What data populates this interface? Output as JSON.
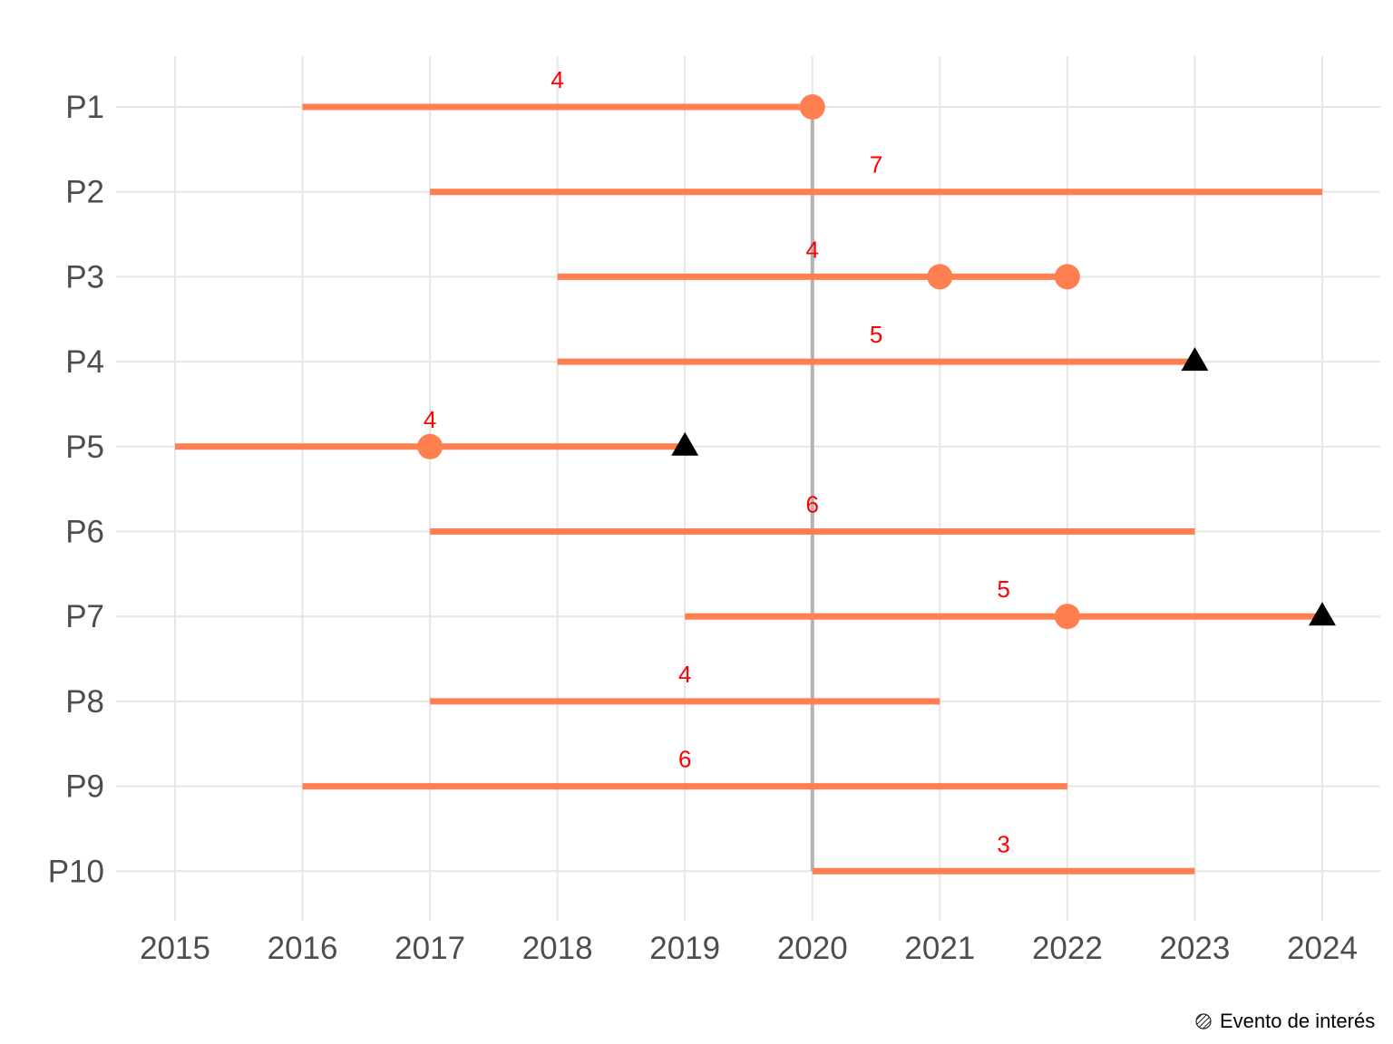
{
  "chart_data": {
    "type": "timeline",
    "title": "",
    "xlabel": "",
    "ylabel": "",
    "xlim": [
      2014.55,
      2024.45
    ],
    "x_ticks": [
      "2015",
      "2016",
      "2017",
      "2018",
      "2019",
      "2020",
      "2021",
      "2022",
      "2023",
      "2024"
    ],
    "categories": [
      "P1",
      "P2",
      "P3",
      "P4",
      "P5",
      "P6",
      "P7",
      "P8",
      "P9",
      "P10"
    ],
    "reference_line": {
      "x": 2020,
      "from": "P1",
      "to": "P10",
      "color": "#b3b3b3"
    },
    "segments": [
      {
        "id": "P1",
        "start": 2016,
        "end": 2020,
        "label": "4",
        "events": [
          2020
        ],
        "endpoints": []
      },
      {
        "id": "P2",
        "start": 2017,
        "end": 2024,
        "label": "7",
        "events": [],
        "endpoints": []
      },
      {
        "id": "P3",
        "start": 2018,
        "end": 2022,
        "label": "4",
        "events": [
          2021,
          2022
        ],
        "endpoints": []
      },
      {
        "id": "P4",
        "start": 2018,
        "end": 2023,
        "label": "5",
        "events": [],
        "endpoints": [
          2023
        ]
      },
      {
        "id": "P5",
        "start": 2015,
        "end": 2019,
        "label": "4",
        "events": [
          2017
        ],
        "endpoints": [
          2019
        ]
      },
      {
        "id": "P6",
        "start": 2017,
        "end": 2023,
        "label": "6",
        "events": [],
        "endpoints": []
      },
      {
        "id": "P7",
        "start": 2019,
        "end": 2024,
        "label": "5",
        "events": [
          2022
        ],
        "endpoints": [
          2024
        ]
      },
      {
        "id": "P8",
        "start": 2017,
        "end": 2021,
        "label": "4",
        "events": [],
        "endpoints": []
      },
      {
        "id": "P9",
        "start": 2016,
        "end": 2022,
        "label": "6",
        "events": [],
        "endpoints": []
      },
      {
        "id": "P10",
        "start": 2020,
        "end": 2023,
        "label": "3",
        "events": [],
        "endpoints": []
      }
    ],
    "colors": {
      "segment": "#ff7f50",
      "event": "#ff7f50",
      "endpoint": "#000000",
      "label": "#ff0000",
      "grid": "#e6e6e6"
    },
    "grid": true,
    "legend": {
      "label": "Evento de interés",
      "position": "bottom-right"
    }
  }
}
